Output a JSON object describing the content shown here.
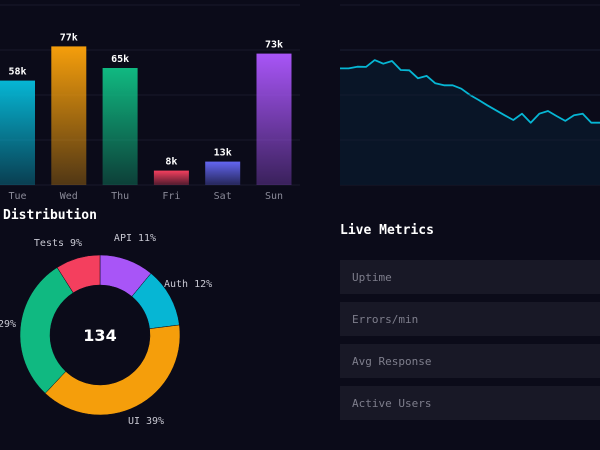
{
  "chart_data": [
    {
      "type": "bar",
      "title": "",
      "categories": [
        "Tue",
        "Wed",
        "Thu",
        "Fri",
        "Sat",
        "Sun"
      ],
      "values": [
        58,
        77,
        65,
        8,
        13,
        73
      ],
      "value_labels": [
        "58k",
        "77k",
        "65k",
        "8k",
        "13k",
        "73k"
      ],
      "colors": [
        "#06b6d4",
        "#f59e0b",
        "#10b981",
        "#f43f5e",
        "#6366f1",
        "#a855f7"
      ],
      "ylim": [
        0,
        100
      ],
      "grid": true
    },
    {
      "type": "area",
      "title": "",
      "x": [
        0,
        1,
        2,
        3,
        4,
        5,
        6,
        7,
        8,
        9,
        10,
        11,
        12,
        13,
        14,
        15,
        16,
        17,
        18,
        19,
        20,
        21,
        22,
        23,
        24,
        25,
        26,
        27,
        28,
        29,
        30
      ],
      "values": [
        64.8,
        64.8,
        65.7,
        65.6,
        69.4,
        67.4,
        68.9,
        63.9,
        63.7,
        59.3,
        60.6,
        56.5,
        55.4,
        55.4,
        53.5,
        50,
        47.2,
        44.3,
        41.5,
        38.7,
        36.1,
        39.6,
        34.6,
        39.6,
        41.1,
        38.3,
        35.6,
        38.7,
        39.6,
        34.6,
        34.6
      ],
      "color": "#06b6d4",
      "ylim": [
        0,
        100
      ],
      "grid": true
    },
    {
      "type": "pie",
      "title": "Distribution",
      "center_label": "134",
      "slices": [
        {
          "label": "API 11%",
          "value": 11,
          "color": "#a855f7"
        },
        {
          "label": "Auth 12%",
          "value": 12,
          "color": "#06b6d4"
        },
        {
          "label": "UI 39%",
          "value": 39,
          "color": "#f59e0b"
        },
        {
          "label": "29%",
          "value": 29,
          "color": "#10b981"
        },
        {
          "label": "Tests 9%",
          "value": 9,
          "color": "#f43f5e"
        }
      ]
    }
  ],
  "sections": {
    "distribution_title": "Distribution",
    "live_metrics_title": "Live Metrics"
  },
  "metrics": [
    {
      "label": "Uptime"
    },
    {
      "label": "Errors/min"
    },
    {
      "label": "Avg Response"
    },
    {
      "label": "Active Users"
    }
  ]
}
